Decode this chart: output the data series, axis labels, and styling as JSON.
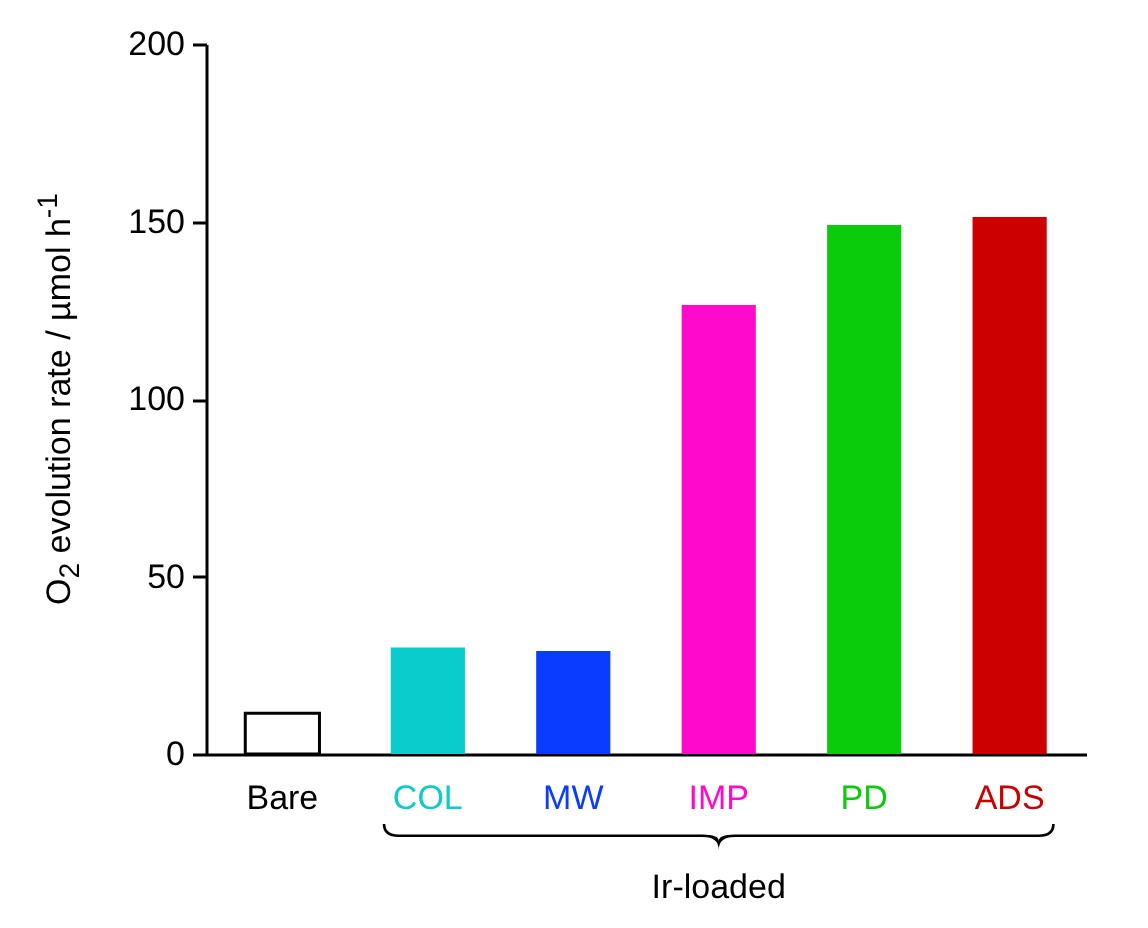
{
  "chart_data": {
    "type": "bar",
    "ylabel": "O$_{2}$ evolution rate / µmol h$^{-1}$",
    "categories": [
      "Bare",
      "COL",
      "MW",
      "IMP",
      "PD",
      "ADS"
    ],
    "values": [
      11.5,
      30,
      29,
      126.5,
      149,
      151.3
    ],
    "colors": [
      "#ffffff",
      "#0acccc",
      "#0a3cff",
      "#ff0acc",
      "#0acc0a",
      "#cc0000"
    ],
    "ylim": [
      0,
      200
    ],
    "yticks": [
      0,
      50,
      100,
      150,
      200
    ],
    "grid": false,
    "annotations": [
      "Ir-loaded"
    ]
  }
}
